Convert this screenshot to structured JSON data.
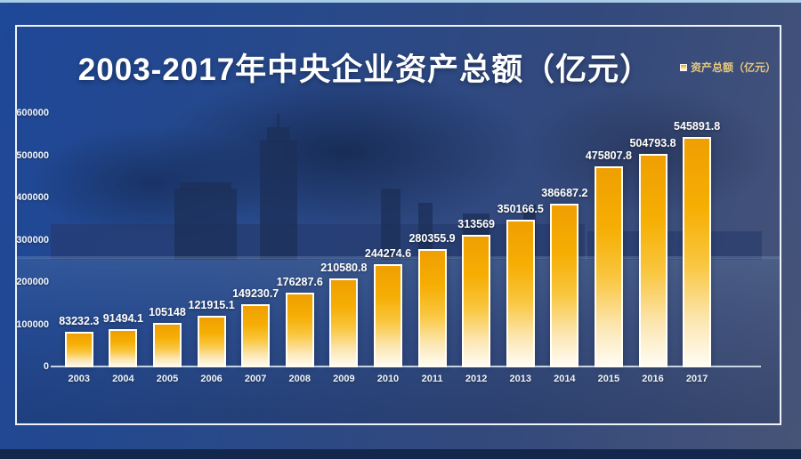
{
  "page": {
    "title": "2003-2017年中央企业资产总额（亿元）",
    "legend_label": "资产总额（亿元）"
  },
  "colors": {
    "bar_top": "#f0a000",
    "bar_bottom": "#ffffff",
    "legend_text": "#e6c87c",
    "background_blue": "#1e4898",
    "frame_border": "#eef4fa",
    "label_text": "#ffffff"
  },
  "chart_data": {
    "type": "bar",
    "title": "2003-2017年中央企业资产总额（亿元）",
    "legend": [
      "资产总额（亿元）"
    ],
    "legend_position": "top-right",
    "grid": false,
    "categories": [
      "2003",
      "2004",
      "2005",
      "2006",
      "2007",
      "2008",
      "2009",
      "2010",
      "2011",
      "2012",
      "2013",
      "2014",
      "2015",
      "2016",
      "2017"
    ],
    "values": [
      83232.3,
      91494.1,
      105148,
      121915.1,
      149230.7,
      176287.6,
      210580.8,
      244274.6,
      280355.9,
      313569,
      350166.5,
      386687.2,
      475807.8,
      504793.8,
      545891.8
    ],
    "data_labels": [
      "83232.3",
      "91494.1",
      "105148",
      "121915.1",
      "149230.7",
      "176287.6",
      "210580.8",
      "244274.6",
      "280355.9",
      "313569",
      "350166.5",
      "386687.2",
      "475807.8",
      "504793.8",
      "545891.8"
    ],
    "ylim": [
      0,
      600000
    ],
    "yticks": [
      0,
      100000,
      200000,
      300000,
      400000,
      500000,
      600000
    ],
    "ytick_labels": [
      "0",
      "100000",
      "200000",
      "300000",
      "400000",
      "500000",
      "600000"
    ]
  }
}
